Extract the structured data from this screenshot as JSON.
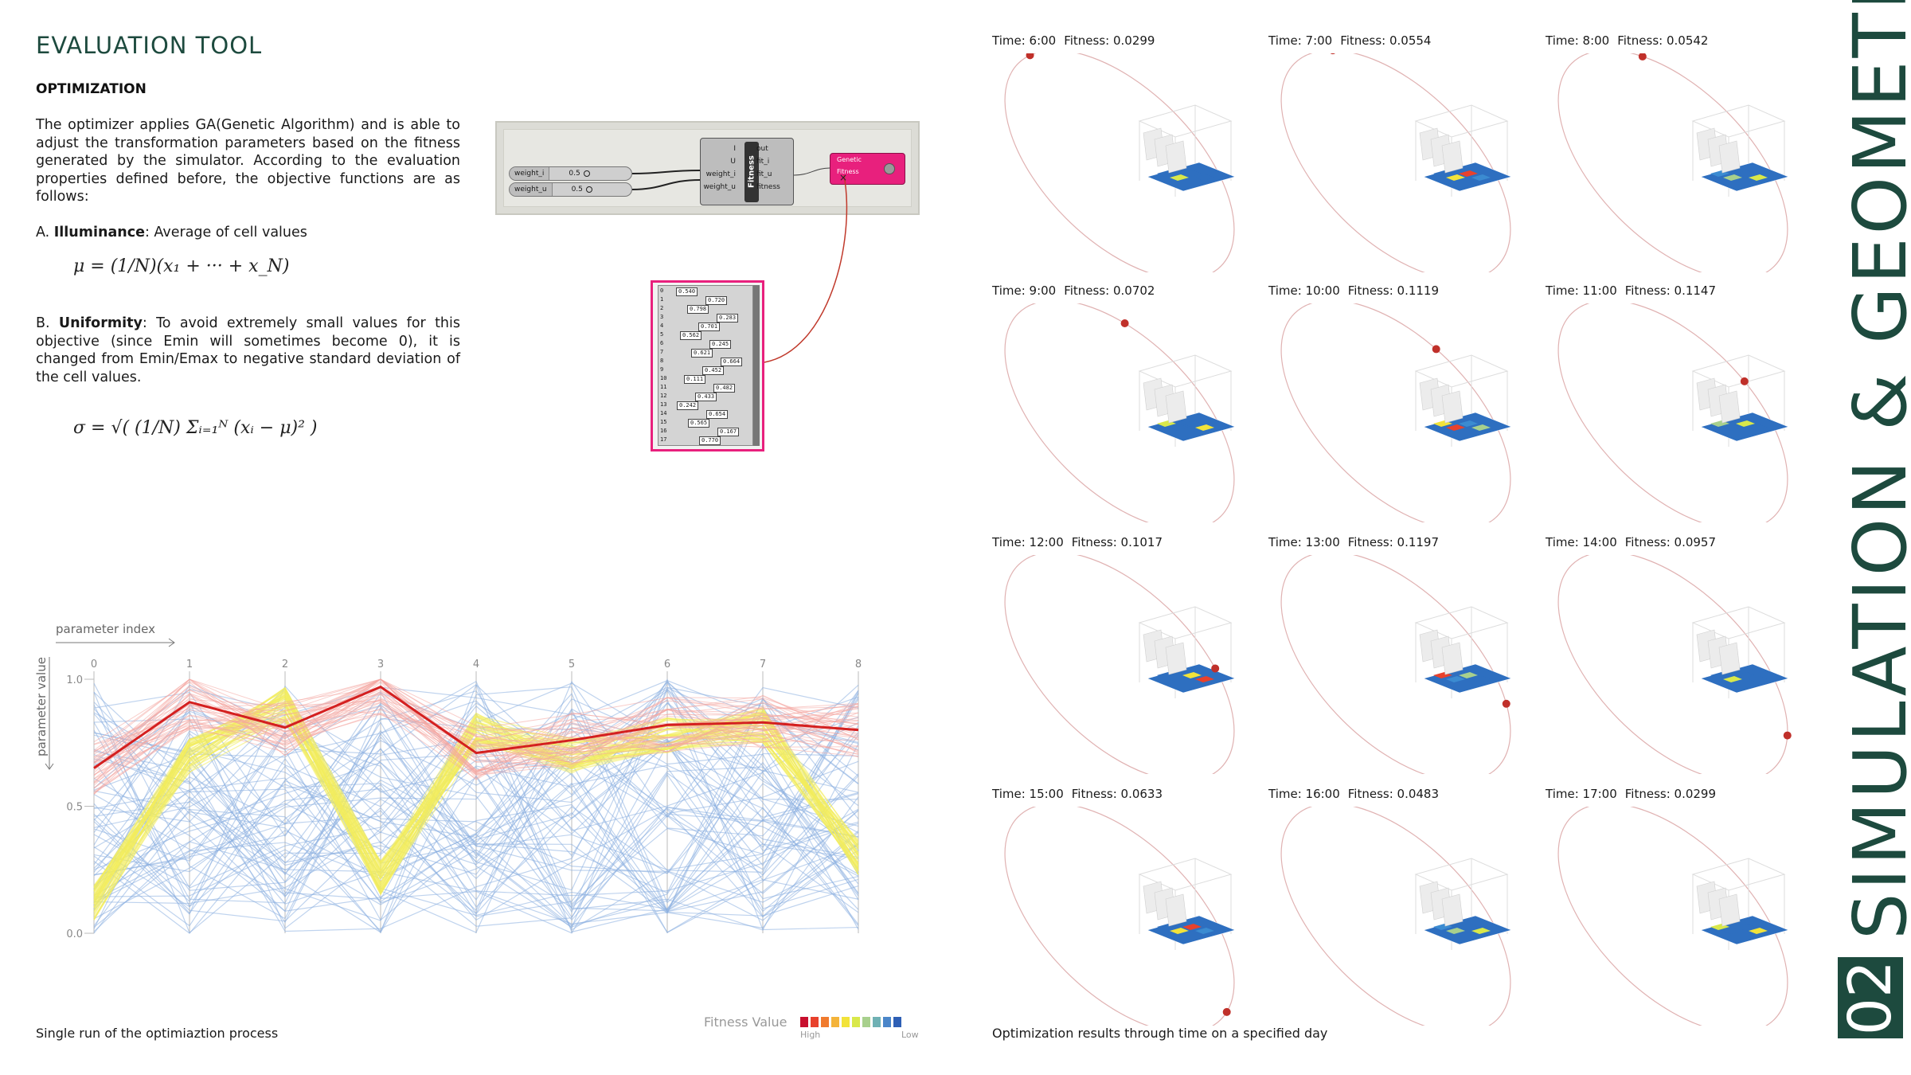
{
  "header": {
    "title": "EVALUATION TOOL",
    "section": "OPTIMIZATION"
  },
  "text": {
    "intro": "The optimizer applies GA(Genetic Algorithm) and is able to adjust the transformation parameters based on the fitness generated by the simulator. According to the evaluation properties defined before, the objective functions are as follows:",
    "a_prefix": "A. ",
    "a_bold": "Illuminance",
    "a_rest": ": Average of cell values",
    "b_prefix": "B. ",
    "b_bold": "Uniformity",
    "b_rest": ": To avoid extremely small values for this objective (since Emin will sometimes become 0), it is changed from Emin/Emax to negative standard deviation of the cell values."
  },
  "formulas": {
    "mean": "μ = (1/N)(x₁ + ··· + x_N)",
    "std": "σ = √( (1/N) Σᵢ₌₁ᴺ (xᵢ − μ)² )"
  },
  "grasshopper": {
    "sliders": [
      {
        "label": "weight_i",
        "value": "0.5"
      },
      {
        "label": "weight_u",
        "value": "0.5"
      }
    ],
    "component": {
      "name": "Fitness",
      "inputs": [
        "I",
        "U",
        "weight_i",
        "weight_u"
      ],
      "outputs": [
        "out",
        "fit_i",
        "fit_u",
        "fitness"
      ]
    },
    "ga": {
      "line1": "Genetic",
      "line2": "Fitness"
    },
    "panel_rows": [
      {
        "i": "0",
        "v": "0.540"
      },
      {
        "i": "1",
        "v": "0.720"
      },
      {
        "i": "2",
        "v": "0.798"
      },
      {
        "i": "3",
        "v": "0.283"
      },
      {
        "i": "4",
        "v": "0.701"
      },
      {
        "i": "5",
        "v": "0.562"
      },
      {
        "i": "6",
        "v": "0.245"
      },
      {
        "i": "7",
        "v": "0.621"
      },
      {
        "i": "8",
        "v": "0.664"
      },
      {
        "i": "9",
        "v": "0.452"
      },
      {
        "i": "10",
        "v": "0.111"
      },
      {
        "i": "11",
        "v": "0.482"
      },
      {
        "i": "12",
        "v": "0.433"
      },
      {
        "i": "13",
        "v": "0.242"
      },
      {
        "i": "14",
        "v": "0.654"
      },
      {
        "i": "15",
        "v": "0.565"
      },
      {
        "i": "16",
        "v": "0.167"
      },
      {
        "i": "17",
        "v": "0.770"
      }
    ]
  },
  "chart_data": {
    "type": "line",
    "xlabel": "parameter index",
    "ylabel": "parameter value",
    "categories": [
      "0",
      "1",
      "2",
      "3",
      "4",
      "5",
      "6",
      "7",
      "8"
    ],
    "ylim": [
      0,
      1
    ],
    "yticks": [
      "0.0",
      "0.5",
      "1.0"
    ],
    "series": [
      {
        "values": [
          0.65,
          0.91,
          0.81,
          0.97,
          0.71,
          0.76,
          0.82,
          0.83,
          0.8
        ]
      }
    ],
    "colors": {
      "best": "#d42020",
      "high": "#f4a6a0",
      "mid": "#f2ec5c",
      "low": "#8aaee0"
    }
  },
  "legend": {
    "title": "Fitness Value",
    "high": "High",
    "low": "Low",
    "colors": [
      "#c8102e",
      "#e8412c",
      "#f07b2e",
      "#f4b43a",
      "#f2e33a",
      "#d9e84a",
      "#a8d08d",
      "#6fb1b4",
      "#4b86c9",
      "#2e5fb5"
    ]
  },
  "captions": {
    "left": "Single run of the optimiaztion process",
    "right": "Optimization results through time on a specified day"
  },
  "results": [
    {
      "time": "Time: 6:00",
      "fitness": "Fitness: 0.0299",
      "sun": 0.53
    },
    {
      "time": "Time: 7:00",
      "fitness": "Fitness: 0.0554",
      "sun": 0.58
    },
    {
      "time": "Time: 8:00",
      "fitness": "Fitness: 0.0542",
      "sun": 0.63
    },
    {
      "time": "Time: 9:00",
      "fitness": "Fitness: 0.0702",
      "sun": 0.68
    },
    {
      "time": "Time: 10:00",
      "fitness": "Fitness: 0.1119",
      "sun": 0.73
    },
    {
      "time": "Time: 11:00",
      "fitness": "Fitness: 0.1147",
      "sun": 0.78
    },
    {
      "time": "Time: 12:00",
      "fitness": "Fitness: 0.1017",
      "sun": 0.83
    },
    {
      "time": "Time: 13:00",
      "fitness": "Fitness: 0.1197",
      "sun": 0.88
    },
    {
      "time": "Time: 14:00",
      "fitness": "Fitness: 0.0957",
      "sun": 0.93
    },
    {
      "time": "Time: 15:00",
      "fitness": "Fitness: 0.0633",
      "sun": 0.98
    },
    {
      "time": "Time: 16:00",
      "fitness": "Fitness: 0.0483",
      "sun": 0.04
    },
    {
      "time": "Time: 17:00",
      "fitness": "Fitness: 0.0299",
      "sun": 0.11
    }
  ],
  "sidebar": {
    "number": "02",
    "title": "SIMULATION & GEOMETRY"
  }
}
